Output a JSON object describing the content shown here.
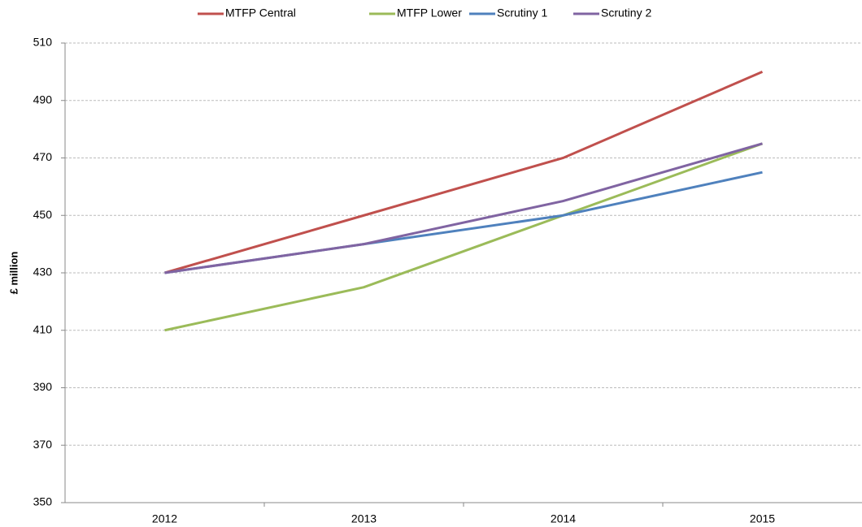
{
  "chart_data": {
    "type": "line",
    "y_label": "£ million",
    "categories": [
      "2012",
      "2013",
      "2014",
      "2015"
    ],
    "series": [
      {
        "name": "MTFP Central",
        "color": "#c0504d",
        "values": [
          430,
          450,
          470,
          500
        ]
      },
      {
        "name": "MTFP Lower",
        "color": "#9bbb59",
        "values": [
          410,
          425,
          450,
          475
        ]
      },
      {
        "name": "Scrutiny 1",
        "color": "#4f81bd",
        "values": [
          430,
          440,
          450,
          465
        ]
      },
      {
        "name": "Scrutiny 2",
        "color": "#8064a2",
        "values": [
          430,
          440,
          455,
          475
        ]
      }
    ],
    "ylim": [
      350,
      510
    ],
    "yticks": [
      350,
      370,
      390,
      410,
      430,
      450,
      470,
      490,
      510
    ],
    "grid": true,
    "legend": "top"
  }
}
